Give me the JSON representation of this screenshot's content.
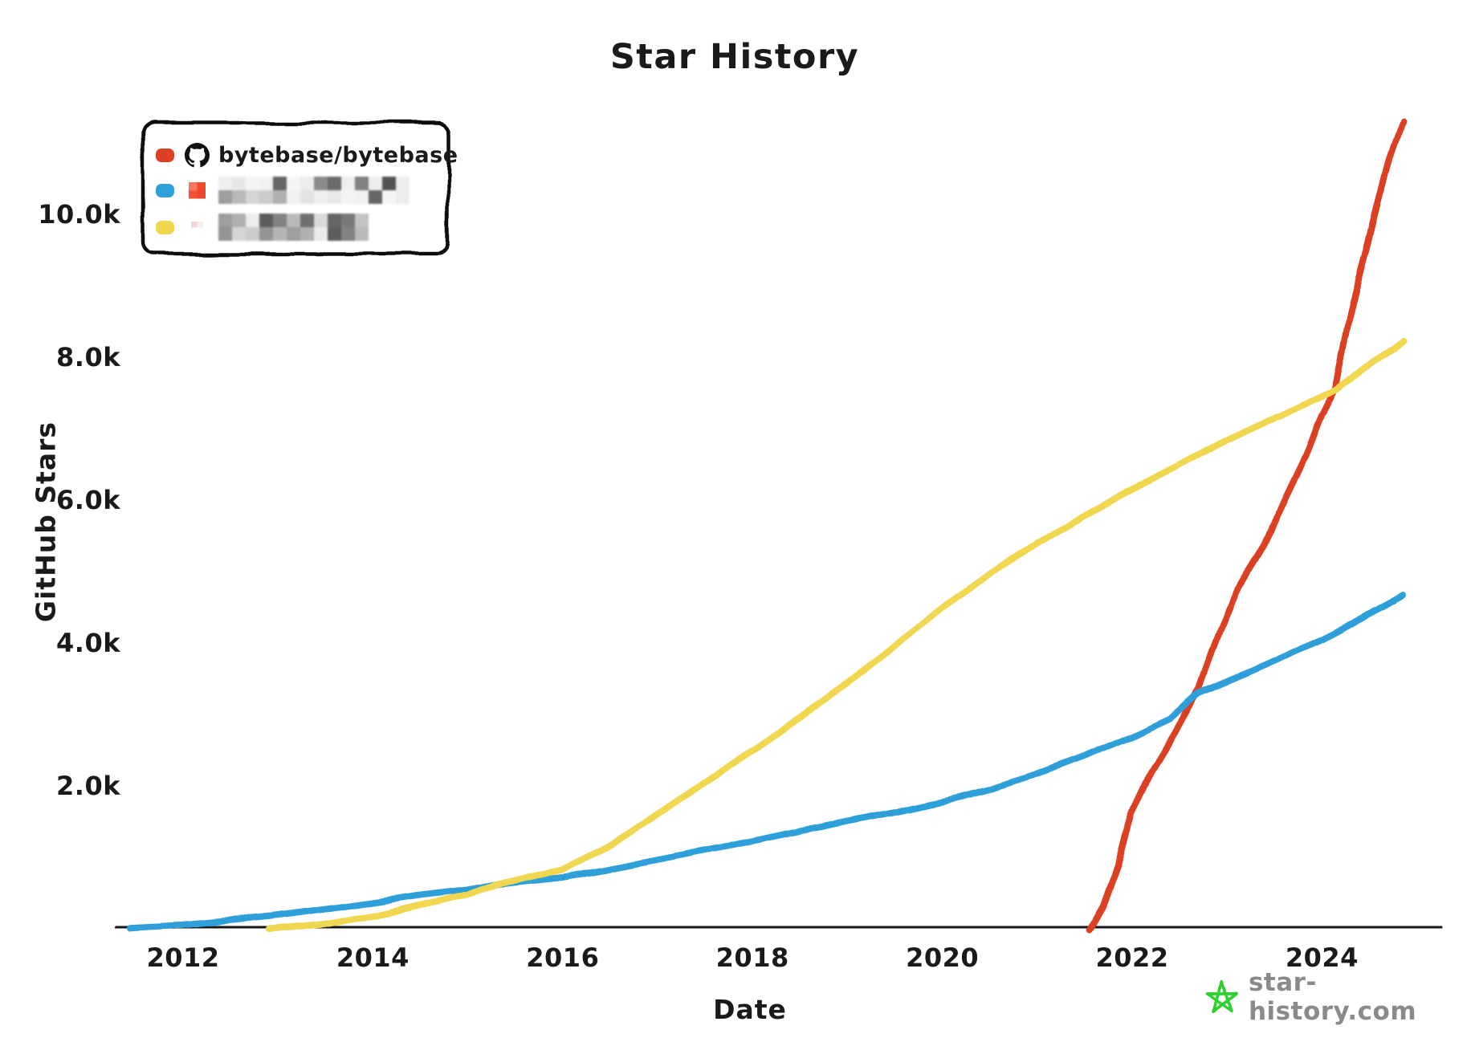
{
  "title": "Star History",
  "axes": {
    "y_label": "GitHub Stars",
    "x_label": "Date",
    "y_ticks": [
      {
        "label": "2.0k",
        "value": 2000
      },
      {
        "label": "4.0k",
        "value": 4000
      },
      {
        "label": "6.0k",
        "value": 6000
      },
      {
        "label": "8.0k",
        "value": 8000
      },
      {
        "label": "10.0k",
        "value": 10000
      }
    ],
    "x_ticks": [
      {
        "label": "2012",
        "year": 2012
      },
      {
        "label": "2014",
        "year": 2014
      },
      {
        "label": "2016",
        "year": 2016
      },
      {
        "label": "2018",
        "year": 2018
      },
      {
        "label": "2020",
        "year": 2020
      },
      {
        "label": "2022",
        "year": 2022
      },
      {
        "label": "2024",
        "year": 2024
      }
    ]
  },
  "legend": {
    "entries": [
      {
        "label": "bytebase/bytebase",
        "color": "#dc4024",
        "icon": "github-icon",
        "redacted": false
      },
      {
        "label": "",
        "color": "#2e9fd9",
        "icon": "avatar-icon",
        "redacted": true
      },
      {
        "label": "",
        "color": "#f0d750",
        "icon": "avatar-icon",
        "redacted": true
      }
    ]
  },
  "footer": {
    "site": "star-history.com",
    "star_color": "#2fd02f",
    "text_color": "#8a8a8a"
  },
  "chart_data": {
    "type": "line",
    "title": "Star History",
    "xlabel": "Date",
    "ylabel": "GitHub Stars",
    "x_range": [
      2011.45,
      2025.0
    ],
    "ylim": [
      0,
      11500
    ],
    "grid": false,
    "legend_position": "top-left",
    "series": [
      {
        "name": "bytebase/bytebase",
        "color": "#dc4024",
        "redacted": false,
        "points": [
          [
            2021.55,
            0
          ],
          [
            2021.7,
            350
          ],
          [
            2021.85,
            900
          ],
          [
            2022.0,
            1650
          ],
          [
            2022.2,
            2200
          ],
          [
            2022.45,
            2750
          ],
          [
            2022.7,
            3350
          ],
          [
            2022.9,
            4100
          ],
          [
            2023.1,
            4750
          ],
          [
            2023.4,
            5400
          ],
          [
            2023.6,
            6000
          ],
          [
            2023.85,
            6700
          ],
          [
            2024.0,
            7200
          ],
          [
            2024.15,
            7600
          ],
          [
            2024.3,
            8600
          ],
          [
            2024.45,
            9400
          ],
          [
            2024.6,
            10200
          ],
          [
            2024.72,
            10800
          ],
          [
            2024.85,
            11330
          ]
        ]
      },
      {
        "name": "",
        "color": "#2e9fd9",
        "redacted": true,
        "points": [
          [
            2011.45,
            20
          ],
          [
            2012.0,
            60
          ],
          [
            2012.5,
            120
          ],
          [
            2013.0,
            190
          ],
          [
            2013.5,
            280
          ],
          [
            2014.0,
            370
          ],
          [
            2014.5,
            470
          ],
          [
            2015.0,
            550
          ],
          [
            2015.3,
            630
          ],
          [
            2016.0,
            730
          ],
          [
            2016.5,
            850
          ],
          [
            2017.0,
            980
          ],
          [
            2017.5,
            1110
          ],
          [
            2018.0,
            1240
          ],
          [
            2018.5,
            1380
          ],
          [
            2019.0,
            1520
          ],
          [
            2019.5,
            1650
          ],
          [
            2020.0,
            1790
          ],
          [
            2020.5,
            1960
          ],
          [
            2021.0,
            2180
          ],
          [
            2021.5,
            2420
          ],
          [
            2022.0,
            2700
          ],
          [
            2022.4,
            2950
          ],
          [
            2022.7,
            3300
          ],
          [
            2023.0,
            3470
          ],
          [
            2023.5,
            3760
          ],
          [
            2024.0,
            4060
          ],
          [
            2024.45,
            4380
          ],
          [
            2024.85,
            4680
          ]
        ]
      },
      {
        "name": "",
        "color": "#f0d750",
        "redacted": true,
        "points": [
          [
            2012.9,
            0
          ],
          [
            2013.5,
            70
          ],
          [
            2014.0,
            180
          ],
          [
            2014.5,
            330
          ],
          [
            2015.0,
            480
          ],
          [
            2015.3,
            630
          ],
          [
            2016.0,
            840
          ],
          [
            2016.5,
            1180
          ],
          [
            2017.0,
            1620
          ],
          [
            2017.5,
            2060
          ],
          [
            2018.0,
            2500
          ],
          [
            2018.5,
            2960
          ],
          [
            2019.0,
            3450
          ],
          [
            2019.5,
            3960
          ],
          [
            2020.0,
            4500
          ],
          [
            2020.5,
            4960
          ],
          [
            2021.0,
            5400
          ],
          [
            2021.5,
            5790
          ],
          [
            2022.0,
            6150
          ],
          [
            2022.5,
            6500
          ],
          [
            2023.0,
            6850
          ],
          [
            2023.5,
            7160
          ],
          [
            2024.15,
            7560
          ],
          [
            2024.5,
            7900
          ],
          [
            2024.85,
            8230
          ]
        ]
      }
    ]
  }
}
